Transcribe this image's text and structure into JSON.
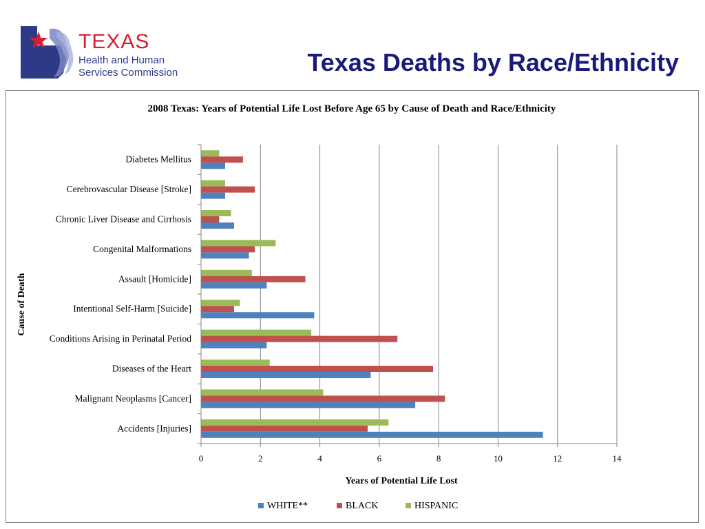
{
  "header": {
    "logo": {
      "word": "TEXAS",
      "line1": "Health and Human",
      "line2": "Services Commission",
      "icon": "texas-star-faces-logo"
    },
    "title": "Texas Deaths by Race/Ethnicity"
  },
  "colors": {
    "white": "#4f81bd",
    "black": "#c0504d",
    "hispanic": "#9bbb59",
    "title": "#1a1a7a",
    "logo_blue": "#2e3a87",
    "logo_red": "#d2202f"
  },
  "chart_data": {
    "type": "bar",
    "orientation": "horizontal",
    "title": "2008 Texas: Years of Potential Life Lost Before Age 65 by Cause of Death and Race/Ethnicity",
    "xlabel": "Years of Potential Life Lost",
    "ylabel": "Cause of Death",
    "xlim": [
      0,
      14
    ],
    "xticks": [
      "0",
      "2",
      "4",
      "6",
      "8",
      "10",
      "12",
      "14"
    ],
    "grid": true,
    "legend": "bottom",
    "categories": [
      "Diabetes Mellitus",
      "Cerebrovascular Disease [Stroke]",
      "Chronic Liver Disease and Cirrhosis",
      "Congenital Malformations",
      "Assault [Homicide]",
      "Intentional Self-Harm [Suicide]",
      "Conditions Arising in Perinatal Period",
      "Diseases of the Heart",
      "Malignant Neoplasms [Cancer]",
      "Accidents [Injuries]"
    ],
    "series": [
      {
        "name": "WHITE**",
        "values": [
          0.8,
          0.8,
          1.1,
          1.6,
          2.2,
          3.8,
          2.2,
          5.7,
          7.2,
          11.5
        ]
      },
      {
        "name": "BLACK",
        "values": [
          1.4,
          1.8,
          0.6,
          1.8,
          3.5,
          1.1,
          6.6,
          7.8,
          8.2,
          5.6
        ]
      },
      {
        "name": "HISPANIC",
        "values": [
          0.6,
          0.8,
          1.0,
          2.5,
          1.7,
          1.3,
          3.7,
          2.3,
          4.1,
          6.3
        ]
      }
    ]
  }
}
